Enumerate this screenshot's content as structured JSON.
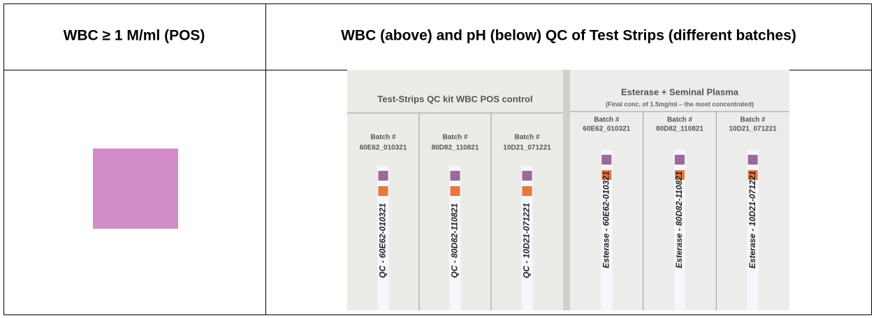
{
  "table": {
    "header": [
      "WBC ≥ 1 M/ml (POS)",
      "WBC (above) and pH (below) QC of Test Strips (different batches)"
    ],
    "photo": {
      "panels": [
        {
          "title": "Test-Strips QC kit WBC POS control",
          "batches": [
            {
              "label": "Batch #",
              "code": "60E62_010321",
              "strip": "QC - 60E62-010321"
            },
            {
              "label": "Batch #",
              "code": "80D82_110821",
              "strip": "QC - 80D82-110821"
            },
            {
              "label": "Batch #",
              "code": "10D21_071221",
              "strip": "QC - 10D21-071221"
            }
          ]
        },
        {
          "title": "Esterase + Seminal Plasma",
          "subtitle": "(Final conc. of 1.5mg/ml – the most concentrated)",
          "batches": [
            {
              "label": "Batch #",
              "code": "60E62_010321",
              "strip": "Esterase - 60E62-010321"
            },
            {
              "label": "Batch #",
              "code": "80D82_110821",
              "strip": "Esterase - 80D82-110821"
            },
            {
              "label": "Batch #",
              "code": "10D21_071221",
              "strip": "Esterase - 10D21-071221"
            }
          ]
        }
      ]
    }
  }
}
